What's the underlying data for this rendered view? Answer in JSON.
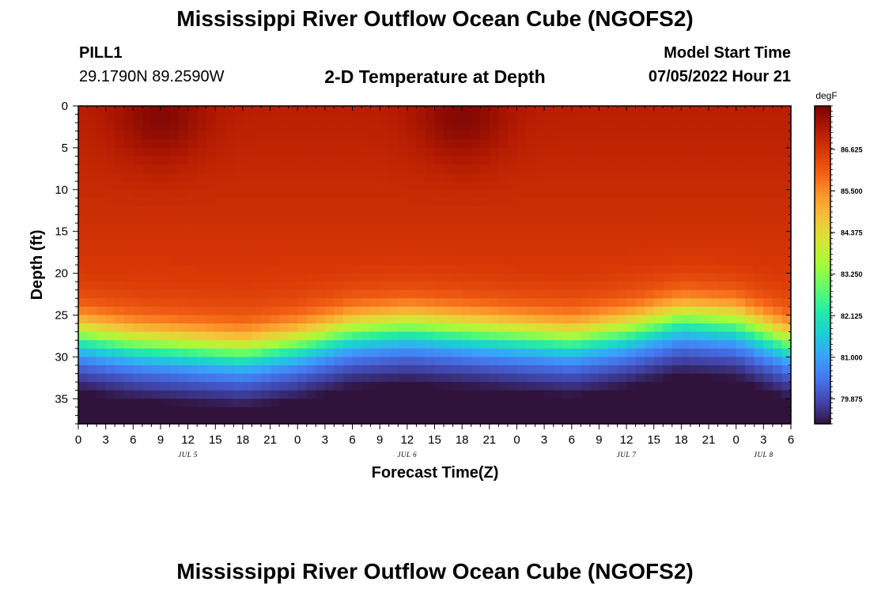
{
  "header": {
    "title": "Mississippi River Outflow Ocean Cube (NGOFS2)",
    "station": "PILL1",
    "coords": "29.1790N  89.2590W",
    "subtitle": "2-D Temperature at Depth",
    "model_start_label": "Model Start Time",
    "model_start_value": "07/05/2022 Hour 21"
  },
  "footer": {
    "title": "Mississippi River Outflow Ocean Cube (NGOFS2)"
  },
  "colors": {
    "colormap": [
      "#30123b",
      "#4145ab",
      "#4675ed",
      "#39a2fc",
      "#1bcfd4",
      "#24eca6",
      "#61fc6c",
      "#a4fc3b",
      "#d1e834",
      "#f3c63a",
      "#fe9b2d",
      "#f36315",
      "#d93806",
      "#b11901",
      "#7a0403"
    ],
    "background": "#ffffff"
  },
  "chart_data": {
    "type": "heatmap",
    "title": "2-D Temperature at Depth",
    "xlabel": "Forecast Time(Z)",
    "ylabel": "Depth (ft)",
    "x_hours_range": [
      0,
      78
    ],
    "xlim": [
      0,
      78
    ],
    "x_ticks_hours": [
      0,
      3,
      6,
      9,
      12,
      15,
      18,
      21,
      24,
      27,
      30,
      33,
      36,
      39,
      42,
      45,
      48,
      51,
      54,
      57,
      60,
      63,
      66,
      69,
      72,
      75,
      78
    ],
    "x_tick_labels": [
      "0",
      "3",
      "6",
      "9",
      "12",
      "15",
      "18",
      "21",
      "0",
      "3",
      "6",
      "9",
      "12",
      "15",
      "18",
      "21",
      "0",
      "3",
      "6",
      "9",
      "12",
      "15",
      "18",
      "21",
      "0",
      "3",
      "6"
    ],
    "x_date_labels": [
      {
        "label": "JUL 5",
        "hour": 12
      },
      {
        "label": "JUL 6",
        "hour": 36
      },
      {
        "label": "JUL 7",
        "hour": 60
      },
      {
        "label": "JUL 8",
        "hour": 75
      }
    ],
    "ylim": [
      0,
      38
    ],
    "y_ticks": [
      0,
      5,
      10,
      15,
      20,
      25,
      30,
      35
    ],
    "y_tick_labels": [
      "0",
      "5",
      "10",
      "15",
      "20",
      "25",
      "30",
      "35"
    ],
    "colorbar": {
      "unit": "degF",
      "min": 79.2,
      "max": 87.8,
      "ticks": [
        79.875,
        81.0,
        82.125,
        83.25,
        84.375,
        85.5,
        86.625
      ],
      "tick_labels": [
        "79.875",
        "81.000",
        "82.125",
        "83.250",
        "84.375",
        "85.500",
        "86.625"
      ]
    },
    "thermocline_depth_ft": [
      {
        "hour": 0,
        "depth": 23.5
      },
      {
        "hour": 6,
        "depth": 24.5
      },
      {
        "hour": 12,
        "depth": 25
      },
      {
        "hour": 18,
        "depth": 25.5
      },
      {
        "hour": 24,
        "depth": 24.5
      },
      {
        "hour": 30,
        "depth": 23
      },
      {
        "hour": 36,
        "depth": 22.5
      },
      {
        "hour": 42,
        "depth": 23
      },
      {
        "hour": 48,
        "depth": 23.5
      },
      {
        "hour": 54,
        "depth": 24
      },
      {
        "hour": 60,
        "depth": 23
      },
      {
        "hour": 66,
        "depth": 21.5
      },
      {
        "hour": 72,
        "depth": 22
      },
      {
        "hour": 78,
        "depth": 24.5
      }
    ],
    "surface_max_points": [
      {
        "hour": 9,
        "depth": 1,
        "value": 87.8
      },
      {
        "hour": 42,
        "depth": 1,
        "value": 87.8
      }
    ],
    "bottom_min_point": {
      "hour": 72,
      "depth": 38,
      "value": 79.3
    },
    "upper_layer_range_degF": [
      86.2,
      87.8
    ],
    "bottom_layer_range_degF": [
      79.3,
      81.5
    ]
  }
}
